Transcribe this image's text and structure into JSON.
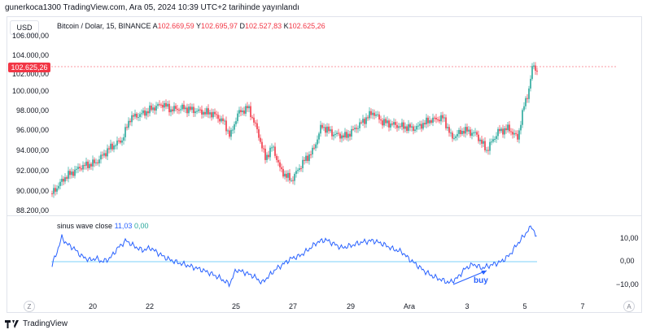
{
  "header": {
    "published_text": "gunerkoca1300 TradingView.com, Ara 05, 2024 10:39 UTC+2 tarihinde yayınlandı"
  },
  "toolbar": {
    "currency_label": "USD"
  },
  "symbol": {
    "name": "Bitcoin / Dolar, 15, BINANCE",
    "open_label": "A",
    "open": "102.669,59",
    "high_label": "Y",
    "high": "102.695,97",
    "low_label": "D",
    "low": "102.527,83",
    "close_label": "K",
    "close": "102.625,26"
  },
  "price_axis": {
    "ticks": [
      "106.000,00",
      "104.000,00",
      "102.000,00",
      "100.000,00",
      "98.000,00",
      "96.000,00",
      "94.000,00",
      "92.000,00",
      "90.000,00",
      "88.200,00"
    ],
    "last_price_badge": "102.625,26"
  },
  "indicator": {
    "name": "sinus wave close",
    "value1": "11,03",
    "value2": "0,00",
    "ticks": [
      "10,00",
      "0,00",
      "−10,00"
    ],
    "annotation": "buy"
  },
  "time_axis": {
    "labels": [
      "20",
      "22",
      "25",
      "27",
      "29",
      "Ara",
      "3",
      "5",
      "7"
    ],
    "left_button": "Z",
    "right_button": "A"
  },
  "footer": {
    "brand": "TradingView"
  },
  "colors": {
    "up": "#26a69a",
    "down": "#f23645",
    "indicator_line": "#2962ff",
    "zero_line": "#4fc3f7"
  }
}
